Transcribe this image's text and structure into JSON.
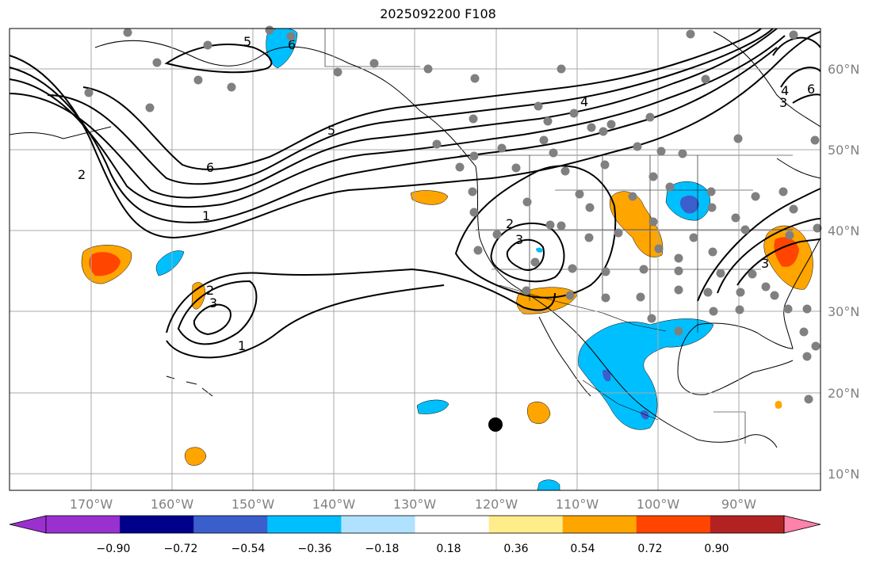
{
  "title": "2025092200 F108",
  "lon_labels": [
    "170°W",
    "160°W",
    "150°W",
    "140°W",
    "130°W",
    "120°W",
    "110°W",
    "100°W",
    "90°W"
  ],
  "lat_labels": [
    "60°N",
    "50°N",
    "40°N",
    "30°N",
    "20°N",
    "10°N"
  ],
  "colorbar": {
    "ticks": [
      "−0.90",
      "−0.72",
      "−0.54",
      "−0.36",
      "−0.18",
      "0.18",
      "0.36",
      "0.54",
      "0.72",
      "0.90"
    ],
    "colors": [
      "#9b30d0",
      "#00008b",
      "#3a5fcd",
      "#00bfff",
      "#b0e2ff",
      "#ffffff",
      "#ffec8b",
      "#ffa500",
      "#ff4500",
      "#b22222",
      "#ff82ab"
    ]
  },
  "contour_labels": [
    "2",
    "1",
    "5",
    "6",
    "4",
    "3",
    "2",
    "3",
    "1",
    "2",
    "3",
    "6",
    "5",
    "4",
    "3",
    "6"
  ],
  "stations_color": "#808080",
  "storm_marker_color": "#000000"
}
